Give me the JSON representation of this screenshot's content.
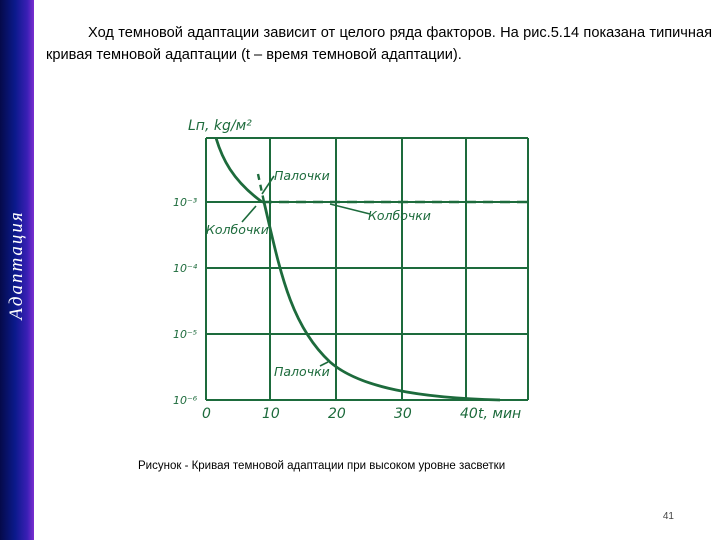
{
  "slide": {
    "side_title": "Адаптация",
    "paragraph": "Ход темновой адаптации зависит от целого ряда факторов. На рис.5.14 показана типичная кривая темновой адаптации (t – время темновой адаптации).",
    "caption": "Рисунок - Кривая темновой адаптации при высоком уровне засветки",
    "page_number": "41"
  },
  "figure": {
    "y_axis_label": "Lп, kg/м²",
    "y_ticks": [
      "10⁻³",
      "10⁻⁴",
      "10⁻⁵",
      "10⁻⁶"
    ],
    "x_ticks": [
      "0",
      "10",
      "20",
      "30",
      "40"
    ],
    "x_axis_label": "t, мин",
    "labels": {
      "rods_top": "Палочки",
      "cones_right": "Колбочки",
      "cones_left": "Колбочки",
      "rods_bottom": "Палочки"
    },
    "line_color": "#1d6b3c"
  }
}
